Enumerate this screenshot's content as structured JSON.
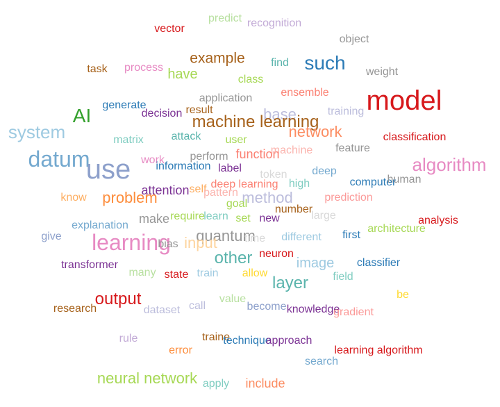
{
  "words": [
    {
      "text": "predict",
      "color": "#b8e0a0"
    },
    {
      "text": "recognition",
      "color": "#c2aad6"
    },
    {
      "text": "vector",
      "color": "#d7191c"
    },
    {
      "text": "object",
      "color": "#969696"
    },
    {
      "text": "example",
      "color": "#a6611a"
    },
    {
      "text": "find",
      "color": "#5ab4ac"
    },
    {
      "text": "such",
      "color": "#2c7bb6"
    },
    {
      "text": "task",
      "color": "#a6611a"
    },
    {
      "text": "process",
      "color": "#e78ac3"
    },
    {
      "text": "have",
      "color": "#a6d854"
    },
    {
      "text": "weight",
      "color": "#969696"
    },
    {
      "text": "class",
      "color": "#a6d854"
    },
    {
      "text": "ensemble",
      "color": "#fb8072"
    },
    {
      "text": "model",
      "color": "#d7191c"
    },
    {
      "text": "application",
      "color": "#969696"
    },
    {
      "text": "AI",
      "color": "#33a02c"
    },
    {
      "text": "generate",
      "color": "#2c7bb6"
    },
    {
      "text": "result",
      "color": "#a6611a"
    },
    {
      "text": "base",
      "color": "#bcbddc"
    },
    {
      "text": "training",
      "color": "#bcbddc"
    },
    {
      "text": "decision",
      "color": "#7b3294"
    },
    {
      "text": "system",
      "color": "#9ecae1"
    },
    {
      "text": "machine learning",
      "color": "#a6611a"
    },
    {
      "text": "classification",
      "color": "#d7191c"
    },
    {
      "text": "matrix",
      "color": "#80cdc1"
    },
    {
      "text": "attack",
      "color": "#5ab4ac"
    },
    {
      "text": "user",
      "color": "#a6d854"
    },
    {
      "text": "network",
      "color": "#fc8d62"
    },
    {
      "text": "datum",
      "color": "#74a9cf"
    },
    {
      "text": "perform",
      "color": "#969696"
    },
    {
      "text": "function",
      "color": "#fb8072"
    },
    {
      "text": "machine",
      "color": "#fbb4ae"
    },
    {
      "text": "feature",
      "color": "#969696"
    },
    {
      "text": "work",
      "color": "#e78ac3"
    },
    {
      "text": "use",
      "color": "#8da0cb"
    },
    {
      "text": "algorithm",
      "color": "#e78ac3"
    },
    {
      "text": "information",
      "color": "#2c7bb6"
    },
    {
      "text": "label",
      "color": "#7b3294"
    },
    {
      "text": "token",
      "color": "#d9d9d9"
    },
    {
      "text": "deep",
      "color": "#74a9cf"
    },
    {
      "text": "computer",
      "color": "#2c7bb6"
    },
    {
      "text": "human",
      "color": "#969696"
    },
    {
      "text": "attention",
      "color": "#7b3294"
    },
    {
      "text": "self",
      "color": "#fdae61"
    },
    {
      "text": "deep learning",
      "color": "#fb8072"
    },
    {
      "text": "pattern",
      "color": "#fbb4ae"
    },
    {
      "text": "high",
      "color": "#80cdc1"
    },
    {
      "text": "know",
      "color": "#fdae61"
    },
    {
      "text": "problem",
      "color": "#fd8d3c"
    },
    {
      "text": "method",
      "color": "#bcbddc"
    },
    {
      "text": "prediction",
      "color": "#fb9a99"
    },
    {
      "text": "goal",
      "color": "#a6d854"
    },
    {
      "text": "number",
      "color": "#a6611a"
    },
    {
      "text": "make",
      "color": "#969696"
    },
    {
      "text": "require",
      "color": "#a6d854"
    },
    {
      "text": "learn",
      "color": "#80cdc1"
    },
    {
      "text": "set",
      "color": "#a6d854"
    },
    {
      "text": "new",
      "color": "#7b3294"
    },
    {
      "text": "large",
      "color": "#d9d9d9"
    },
    {
      "text": "analysis",
      "color": "#d7191c"
    },
    {
      "text": "explanation",
      "color": "#74a9cf"
    },
    {
      "text": "quantum",
      "color": "#969696"
    },
    {
      "text": "architecture",
      "color": "#a6d854"
    },
    {
      "text": "give",
      "color": "#8da0cb"
    },
    {
      "text": "learning",
      "color": "#e78ac3"
    },
    {
      "text": "bias",
      "color": "#969696"
    },
    {
      "text": "input",
      "color": "#fdd49e"
    },
    {
      "text": "time",
      "color": "#d9d9d9"
    },
    {
      "text": "different",
      "color": "#9ecae1"
    },
    {
      "text": "first",
      "color": "#2c7bb6"
    },
    {
      "text": "neuron",
      "color": "#d7191c"
    },
    {
      "text": "other",
      "color": "#5ab4ac"
    },
    {
      "text": "image",
      "color": "#9ecae1"
    },
    {
      "text": "classifier",
      "color": "#2c7bb6"
    },
    {
      "text": "transformer",
      "color": "#7b3294"
    },
    {
      "text": "many",
      "color": "#b8e0a0"
    },
    {
      "text": "state",
      "color": "#d7191c"
    },
    {
      "text": "train",
      "color": "#9ecae1"
    },
    {
      "text": "allow",
      "color": "#ffd92f"
    },
    {
      "text": "layer",
      "color": "#5ab4ac"
    },
    {
      "text": "field",
      "color": "#80cdc1"
    },
    {
      "text": "be",
      "color": "#ffd92f"
    },
    {
      "text": "output",
      "color": "#d7191c"
    },
    {
      "text": "value",
      "color": "#b8e0a0"
    },
    {
      "text": "research",
      "color": "#a6611a"
    },
    {
      "text": "dataset",
      "color": "#bcbddc"
    },
    {
      "text": "call",
      "color": "#bcbddc"
    },
    {
      "text": "become",
      "color": "#8da0cb"
    },
    {
      "text": "knowledge",
      "color": "#7b3294"
    },
    {
      "text": "gradient",
      "color": "#fb9a99"
    },
    {
      "text": "rule",
      "color": "#c2aad6"
    },
    {
      "text": "traine",
      "color": "#a6611a"
    },
    {
      "text": "error",
      "color": "#fd8d3c"
    },
    {
      "text": "technique",
      "color": "#2c7bb6"
    },
    {
      "text": "approach",
      "color": "#7b3294"
    },
    {
      "text": "learning algorithm",
      "color": "#d7191c"
    },
    {
      "text": "search",
      "color": "#74a9cf"
    },
    {
      "text": "neural network",
      "color": "#a6d854"
    },
    {
      "text": "apply",
      "color": "#80cdc1"
    },
    {
      "text": "include",
      "color": "#fc8d62"
    }
  ]
}
